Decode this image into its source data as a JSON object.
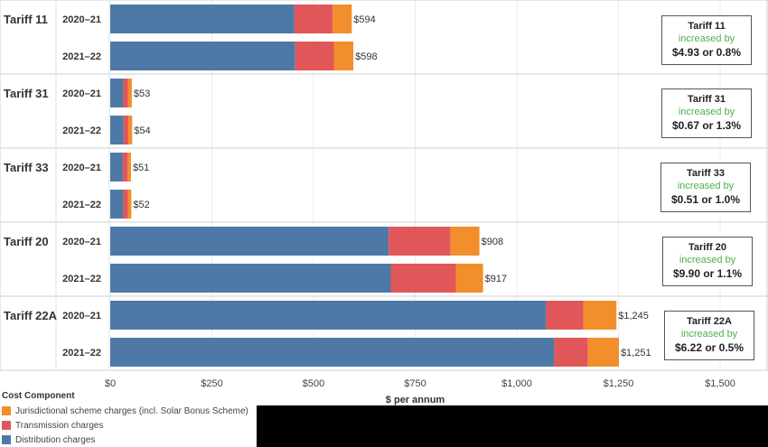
{
  "chart_data": {
    "type": "bar",
    "orientation": "horizontal",
    "stacked": true,
    "xlabel": "$ per annum",
    "xlim": [
      0,
      1500
    ],
    "x_ticks": [
      "$0",
      "$250",
      "$500",
      "$750",
      "$1,000",
      "$1,250",
      "$1,500"
    ],
    "grid": true,
    "legend_position": "bottom-left",
    "legend_title": "Cost Component",
    "legend": [
      {
        "name": "Jurisdictional scheme charges (incl. Solar Bonus Scheme)",
        "color": "#f28e2b"
      },
      {
        "name": "Transmission charges",
        "color": "#e15759"
      },
      {
        "name": "Distribution charges",
        "color": "#4e79a7"
      }
    ],
    "groups": [
      {
        "label": "Tariff 11",
        "callout": {
          "title": "Tariff 11",
          "text": "increased by",
          "value": "$4.93 or 0.8%"
        },
        "bars": [
          {
            "year": "2020–21",
            "distribution": 453,
            "transmission": 94,
            "jurisdictional": 47,
            "total_label": "$594"
          },
          {
            "year": "2021–22",
            "distribution": 455,
            "transmission": 95,
            "jurisdictional": 48,
            "total_label": "$598"
          }
        ]
      },
      {
        "label": "Tariff 31",
        "callout": {
          "title": "Tariff 31",
          "text": "increased by",
          "value": "$0.67 or 1.3%"
        },
        "bars": [
          {
            "year": "2020–21",
            "distribution": 32,
            "transmission": 12,
            "jurisdictional": 9,
            "total_label": "$53"
          },
          {
            "year": "2021–22",
            "distribution": 33,
            "transmission": 12,
            "jurisdictional": 9,
            "total_label": "$54"
          }
        ]
      },
      {
        "label": "Tariff 33",
        "callout": {
          "title": "Tariff 33",
          "text": "increased by",
          "value": "$0.51 or 1.0%"
        },
        "bars": [
          {
            "year": "2020–21",
            "distribution": 31,
            "transmission": 12,
            "jurisdictional": 8,
            "total_label": "$51"
          },
          {
            "year": "2021–22",
            "distribution": 32,
            "transmission": 12,
            "jurisdictional": 8,
            "total_label": "$52"
          }
        ]
      },
      {
        "label": "Tariff 20",
        "callout": {
          "title": "Tariff 20",
          "text": "increased by",
          "value": "$9.90 or 1.1%"
        },
        "bars": [
          {
            "year": "2020–21",
            "distribution": 685,
            "transmission": 152,
            "jurisdictional": 71,
            "total_label": "$908"
          },
          {
            "year": "2021–22",
            "distribution": 690,
            "transmission": 160,
            "jurisdictional": 67,
            "total_label": "$917"
          }
        ]
      },
      {
        "label": "Tariff 22A",
        "callout": {
          "title": "Tariff 22A",
          "text": "increased by",
          "value": "$6.22 or 0.5%"
        },
        "bars": [
          {
            "year": "2020–21",
            "distribution": 1072,
            "transmission": 92,
            "jurisdictional": 81,
            "total_label": "$1,245"
          },
          {
            "year": "2021–22",
            "distribution": 1092,
            "transmission": 83,
            "jurisdictional": 76,
            "total_label": "$1,251"
          }
        ]
      }
    ]
  }
}
